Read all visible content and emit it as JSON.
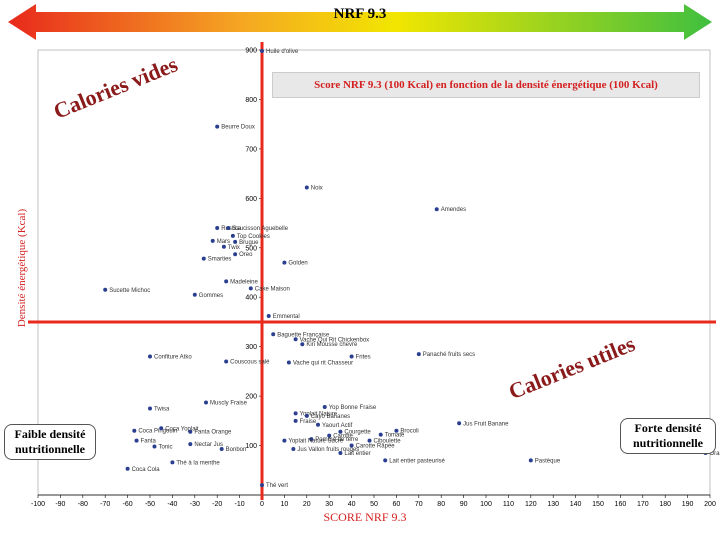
{
  "header": {
    "title": "NRF 9.3"
  },
  "colors": {
    "red": "#e8291c",
    "orange": "#f5a623",
    "yellow": "#f2e600",
    "green": "#3fbf3f",
    "accent": "#d42020",
    "point": "#2a3f8f"
  },
  "labels": {
    "faible": "Faible densité nutritionnelle",
    "forte": "Forte densité nutritionnelle",
    "calories_vides_1": "Calories vides",
    "calories_vides_2": "Calories utiles"
  },
  "chart_data": {
    "type": "scatter",
    "title": "Score NRF 9.3 (100 Kcal) en fonction de la densité énergétique (100 Kcal)",
    "xlabel": "SCORE NRF 9.3",
    "ylabel": "Densité énergétique (Kcal)",
    "xlim": [
      -100,
      200
    ],
    "ylim": [
      0,
      900
    ],
    "xticks": [
      "-100",
      "-90",
      "-80",
      "-70",
      "-60",
      "-50",
      "-40",
      "-30",
      "-20",
      "-10",
      "0",
      "10",
      "20",
      "30",
      "40",
      "50",
      "60",
      "70",
      "80",
      "90",
      "100",
      "110",
      "120",
      "130",
      "140",
      "150",
      "160",
      "170",
      "180",
      "190",
      "200"
    ],
    "yticks": [
      "100",
      "200",
      "300",
      "400",
      "500",
      "600",
      "700",
      "800",
      "900"
    ],
    "reference_lines": {
      "x": 0,
      "y": 350
    },
    "points": [
      {
        "label": "Huile d'olive",
        "x": 0,
        "y": 898
      },
      {
        "label": "Beurre Doux",
        "x": -20,
        "y": 745
      },
      {
        "label": "Noix",
        "x": 20,
        "y": 622
      },
      {
        "label": "Amendes",
        "x": 78,
        "y": 578
      },
      {
        "label": "Rustica",
        "x": -20,
        "y": 540
      },
      {
        "label": "Saucisson Aguebelle",
        "x": -15,
        "y": 540
      },
      {
        "label": "Top Cookies",
        "x": -13,
        "y": 524
      },
      {
        "label": "Mars",
        "x": -22,
        "y": 514
      },
      {
        "label": "Brugue",
        "x": -12,
        "y": 512
      },
      {
        "label": "Twix",
        "x": -17,
        "y": 502
      },
      {
        "label": "Oreo",
        "x": -12,
        "y": 487
      },
      {
        "label": "Smarties",
        "x": -26,
        "y": 478
      },
      {
        "label": "Golden",
        "x": 10,
        "y": 470
      },
      {
        "label": "Madeleine",
        "x": -16,
        "y": 432
      },
      {
        "label": "Cake Maison",
        "x": -5,
        "y": 418
      },
      {
        "label": "Sucette Michoc",
        "x": -70,
        "y": 415
      },
      {
        "label": "Gommes",
        "x": -30,
        "y": 405
      },
      {
        "label": "Emmental",
        "x": 3,
        "y": 362
      },
      {
        "label": "Baguette Française",
        "x": 5,
        "y": 325
      },
      {
        "label": "Vache Qui Rit Chickenbox",
        "x": 15,
        "y": 315
      },
      {
        "label": "Kiri Mousse chevre",
        "x": 18,
        "y": 305
      },
      {
        "label": "Frites",
        "x": 40,
        "y": 280
      },
      {
        "label": "Panaché fruits secs",
        "x": 70,
        "y": 285
      },
      {
        "label": "Confiture Atko",
        "x": -50,
        "y": 280
      },
      {
        "label": "Couscous salé",
        "x": -16,
        "y": 270
      },
      {
        "label": "Vache qui rit Chasseur",
        "x": 12,
        "y": 268
      },
      {
        "label": "Muscly Fraise",
        "x": -25,
        "y": 187
      },
      {
        "label": "Yop Bonne Fraise",
        "x": 28,
        "y": 178
      },
      {
        "label": "Twisa",
        "x": -50,
        "y": 175
      },
      {
        "label": "Yoplait Nature",
        "x": 15,
        "y": 165
      },
      {
        "label": "Cayo Bananes",
        "x": 20,
        "y": 160
      },
      {
        "label": "Jus Fruit Banane",
        "x": 88,
        "y": 145
      },
      {
        "label": "Fraise",
        "x": 15,
        "y": 150
      },
      {
        "label": "Yaourt Actif",
        "x": 25,
        "y": 142
      },
      {
        "label": "Coca Pingouin",
        "x": -57,
        "y": 130
      },
      {
        "label": "Coca Yoplait",
        "x": -45,
        "y": 135
      },
      {
        "label": "Brocoli",
        "x": 60,
        "y": 130
      },
      {
        "label": "Courgette",
        "x": 35,
        "y": 128
      },
      {
        "label": "Tomate",
        "x": 53,
        "y": 122
      },
      {
        "label": "Fanta Orange",
        "x": -32,
        "y": 128
      },
      {
        "label": "Carotte",
        "x": 30,
        "y": 120
      },
      {
        "label": "Ciboulette",
        "x": 48,
        "y": 110
      },
      {
        "label": "Fanta",
        "x": -56,
        "y": 110
      },
      {
        "label": "Pomme de terre",
        "x": 22,
        "y": 113
      },
      {
        "label": "Yoplait Nature Sucré",
        "x": 10,
        "y": 110
      },
      {
        "label": "Carotte Râpée",
        "x": 40,
        "y": 100
      },
      {
        "label": "Tonic",
        "x": -48,
        "y": 98
      },
      {
        "label": "Nectar Jus",
        "x": -32,
        "y": 103
      },
      {
        "label": "Bonbon",
        "x": -18,
        "y": 93
      },
      {
        "label": "Jus Vallon fruits rouges",
        "x": 14,
        "y": 93
      },
      {
        "label": "Lait entier",
        "x": 35,
        "y": 85
      },
      {
        "label": "Lait entier pasteurisé",
        "x": 55,
        "y": 70
      },
      {
        "label": "Pastèque",
        "x": 120,
        "y": 70
      },
      {
        "label": "Orange",
        "x": 198,
        "y": 85
      },
      {
        "label": "Thé à la menthe",
        "x": -40,
        "y": 66
      },
      {
        "label": "Coca Cola",
        "x": -60,
        "y": 53
      },
      {
        "label": "Thé vert",
        "x": 0,
        "y": 20
      }
    ]
  }
}
